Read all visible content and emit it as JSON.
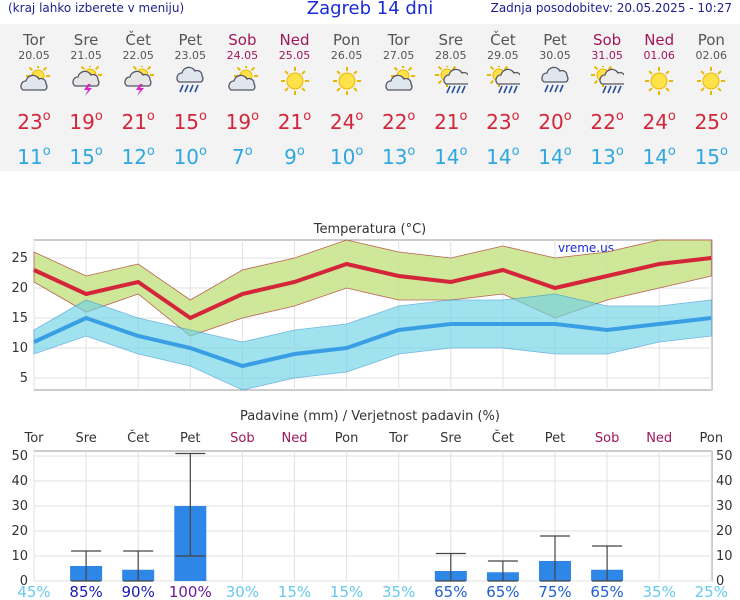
{
  "header": {
    "menu_hint": "(kraj lahko izberete v meniju)",
    "title": "Zagreb 14 dni",
    "updated": "Zadnja posodobitev: 20.05.2025 - 10:27"
  },
  "days": [
    {
      "name": "Tor",
      "date": "20.05",
      "weekend": false,
      "icon": "sun-cloud-icon",
      "hi": "23",
      "lo": "11"
    },
    {
      "name": "Sre",
      "date": "21.05",
      "weekend": false,
      "icon": "sun-thunder-icon",
      "hi": "19",
      "lo": "15"
    },
    {
      "name": "Čet",
      "date": "22.05",
      "weekend": false,
      "icon": "sun-thunder-icon",
      "hi": "21",
      "lo": "12"
    },
    {
      "name": "Pet",
      "date": "23.05",
      "weekend": false,
      "icon": "rain-cloud-icon",
      "hi": "15",
      "lo": "10"
    },
    {
      "name": "Sob",
      "date": "24.05",
      "weekend": true,
      "icon": "sun-cloud-icon",
      "hi": "19",
      "lo": "7"
    },
    {
      "name": "Ned",
      "date": "25.05",
      "weekend": true,
      "icon": "sun-icon",
      "hi": "21",
      "lo": "9"
    },
    {
      "name": "Pon",
      "date": "26.05",
      "weekend": false,
      "icon": "sun-icon",
      "hi": "24",
      "lo": "10"
    },
    {
      "name": "Tor",
      "date": "27.05",
      "weekend": false,
      "icon": "sun-cloud-icon",
      "hi": "22",
      "lo": "13"
    },
    {
      "name": "Sre",
      "date": "28.05",
      "weekend": false,
      "icon": "sun-rain-icon",
      "hi": "21",
      "lo": "14"
    },
    {
      "name": "Čet",
      "date": "29.05",
      "weekend": false,
      "icon": "sun-rain-icon",
      "hi": "23",
      "lo": "14"
    },
    {
      "name": "Pet",
      "date": "30.05",
      "weekend": false,
      "icon": "rain-cloud-icon",
      "hi": "20",
      "lo": "14"
    },
    {
      "name": "Sob",
      "date": "31.05",
      "weekend": true,
      "icon": "sun-rain-icon",
      "hi": "22",
      "lo": "13"
    },
    {
      "name": "Ned",
      "date": "01.06",
      "weekend": true,
      "icon": "sun-icon",
      "hi": "24",
      "lo": "14"
    },
    {
      "name": "Pon",
      "date": "02.06",
      "weekend": false,
      "icon": "sun-icon",
      "hi": "25",
      "lo": "15"
    }
  ],
  "colors": {
    "hi": "#d4253a",
    "lo": "#2fa7e0",
    "weekend": "#a0175a",
    "bar": "#2e86e6"
  },
  "chart_data": [
    {
      "type": "line",
      "title": "Temperatura (°C)",
      "watermark": "vreme.us",
      "ylim": [
        3,
        28
      ],
      "yticks": [
        5,
        10,
        15,
        20,
        25
      ],
      "series": [
        {
          "values": [
            23,
            19,
            21,
            15,
            19,
            21,
            24,
            22,
            21,
            23,
            20,
            22,
            24,
            25
          ]
        },
        {
          "values": [
            11,
            15,
            12,
            10,
            7,
            9,
            10,
            13,
            14,
            14,
            14,
            13,
            14,
            15
          ]
        }
      ],
      "hi_band": {
        "upper": [
          26,
          22,
          24,
          18,
          23,
          25,
          28,
          26,
          25,
          27,
          25,
          26,
          28,
          28
        ],
        "lower": [
          21,
          16,
          19,
          12,
          15,
          17,
          20,
          18,
          18,
          19,
          15,
          18,
          20,
          22
        ]
      },
      "lo_band": {
        "upper": [
          13,
          18,
          15,
          13,
          11,
          13,
          14,
          17,
          18,
          18,
          19,
          17,
          17,
          18
        ],
        "lower": [
          9,
          12,
          9,
          7,
          3,
          5,
          6,
          9,
          10,
          10,
          9,
          9,
          11,
          12
        ]
      }
    },
    {
      "type": "bar",
      "title": "Padavine (mm) / Verjetnost padavin (%)",
      "categories": [
        "Tor",
        "Sre",
        "Čet",
        "Pet",
        "Sob",
        "Ned",
        "Pon",
        "Tor",
        "Sre",
        "Čet",
        "Pet",
        "Sob",
        "Ned",
        "Pon"
      ],
      "weekend": [
        false,
        false,
        false,
        false,
        true,
        true,
        false,
        false,
        false,
        false,
        false,
        true,
        true,
        false
      ],
      "ylim": [
        0,
        52
      ],
      "yticks": [
        0,
        10,
        20,
        30,
        40,
        50
      ],
      "values": [
        0,
        6,
        4.5,
        30,
        0,
        0,
        0,
        0,
        4,
        3.5,
        8,
        4.5,
        0,
        0
      ],
      "err_low": [
        0,
        0,
        0,
        10,
        0,
        0,
        0,
        0,
        0,
        0,
        0,
        0,
        0,
        0
      ],
      "err_high": [
        0,
        12,
        12,
        51,
        0,
        0,
        0,
        0,
        11,
        8,
        18,
        14,
        0,
        0
      ],
      "probability": [
        45,
        85,
        90,
        100,
        30,
        15,
        15,
        35,
        65,
        65,
        75,
        65,
        35,
        25
      ]
    }
  ]
}
